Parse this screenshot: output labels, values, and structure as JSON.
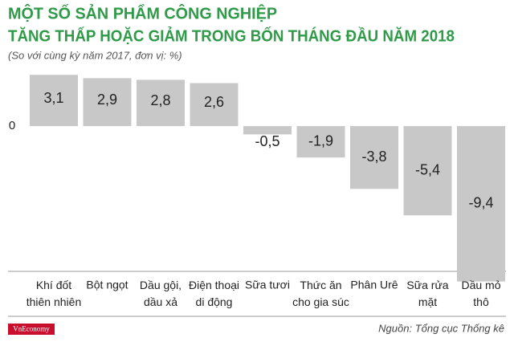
{
  "chart_data": {
    "type": "bar",
    "title": [
      "MỘT SỐ SẢN PHẨM CÔNG NGHIỆP",
      "TĂNG THẤP HOẶC GIẢM TRONG BỐN THÁNG ĐẦU NĂM 2018"
    ],
    "subtitle": "(So với cùng kỳ năm 2017, đơn vị: %)",
    "categories": [
      "Khí đốt\nthiên nhiên",
      "Bột ngọt",
      "Dầu gội,\ndầu xả",
      "Điện thoại\ndi động",
      "Sữa tươi",
      "Thức ăn\ncho gia súc",
      "Phân Urê",
      "Sữa rửa\nmặt",
      "Dầu mỏ\nthô"
    ],
    "values": [
      3.1,
      2.9,
      2.8,
      2.6,
      -0.5,
      -1.9,
      -3.8,
      -5.4,
      -9.4
    ],
    "value_labels": [
      "3,1",
      "2,9",
      "2,8",
      "2,6",
      "-0,5",
      "-1,9",
      "-3,8",
      "-5,4",
      "-9,4"
    ],
    "color": "#c8c8c8",
    "ylim": [
      -10,
      3.5
    ],
    "yticks": [
      0
    ],
    "brand": "VnEconomy",
    "source": "Nguồn: Tổng cục Thống kê"
  }
}
